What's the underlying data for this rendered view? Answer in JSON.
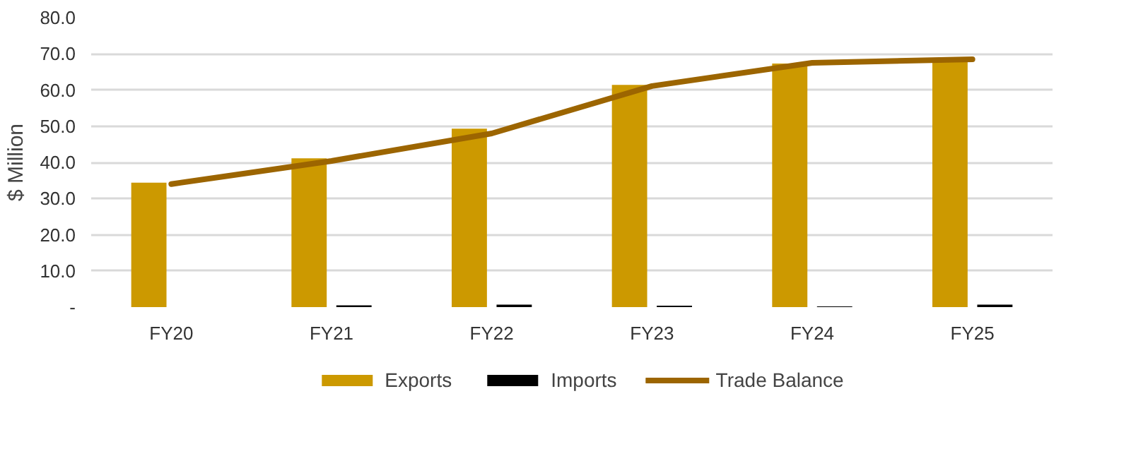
{
  "chart_data": {
    "type": "bar",
    "ylabel": "$ Million",
    "categories": [
      "FY20",
      "FY21",
      "FY22",
      "FY23",
      "FY24",
      "FY25"
    ],
    "series": [
      {
        "name": "Exports",
        "color": "#cc9900",
        "values": [
          34.4,
          41.1,
          49.3,
          61.4,
          67.3,
          68.8
        ]
      },
      {
        "name": "Imports",
        "color": "#000000",
        "values": [
          0.0,
          0.5,
          0.7,
          0.4,
          0.2,
          0.7
        ]
      },
      {
        "name": "Trade Balance",
        "type": "line",
        "color": "#9c6500",
        "values": [
          34.0,
          40.4,
          48.0,
          61.1,
          67.5,
          68.5
        ]
      }
    ],
    "ylim": [
      0,
      80
    ],
    "yticks": [
      {
        "value": 0,
        "label": "-"
      },
      {
        "value": 10,
        "label": "10.0"
      },
      {
        "value": 20,
        "label": "20.0"
      },
      {
        "value": 30,
        "label": "30.0"
      },
      {
        "value": 40,
        "label": "40.0"
      },
      {
        "value": 50,
        "label": "50.0"
      },
      {
        "value": 60,
        "label": "60.0"
      },
      {
        "value": 70,
        "label": "70.0"
      },
      {
        "value": 80,
        "label": "80.0"
      }
    ],
    "grid": "y",
    "legend": "bottom",
    "marker": "none",
    "line_style": "solid"
  }
}
